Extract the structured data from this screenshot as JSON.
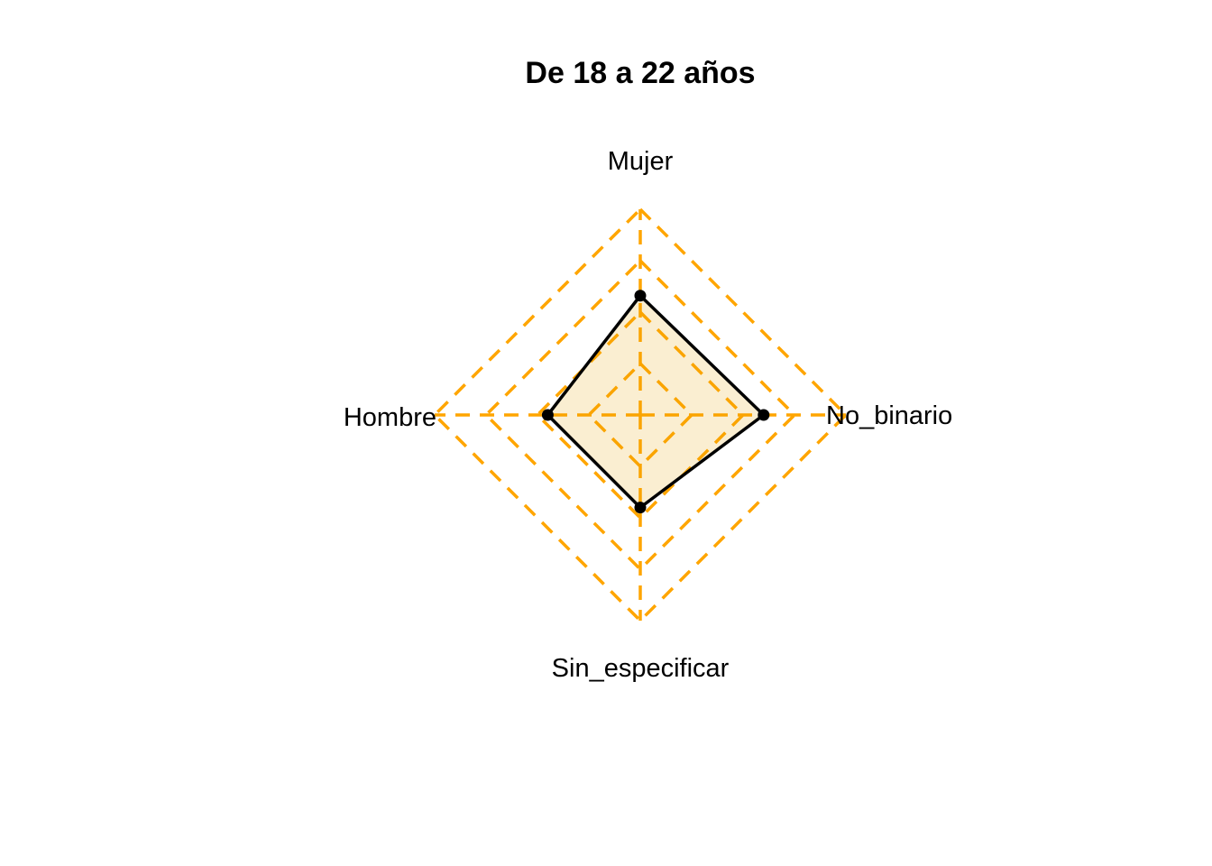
{
  "chart_data": {
    "type": "radar",
    "title": "De 18 a 22 años",
    "axes": [
      "Mujer",
      "No_binario",
      "Sin_especificar",
      "Hombre"
    ],
    "values": [
      0.58,
      0.6,
      0.45,
      0.45
    ],
    "range": [
      0,
      1
    ],
    "grid_levels": 4,
    "colors": {
      "grid": "#FFA500",
      "series_line": "#000000",
      "series_fill": "rgba(230,159,0,0.18)",
      "marker": "#000000"
    }
  }
}
